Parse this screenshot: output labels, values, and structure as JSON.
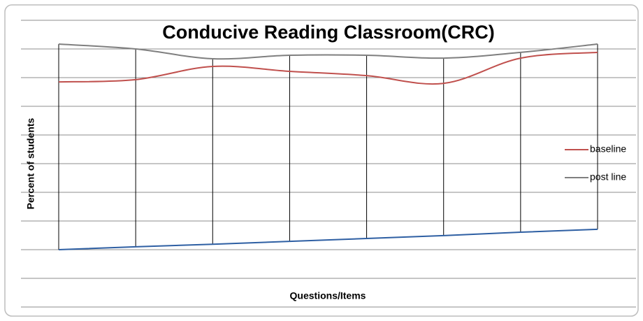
{
  "chart_data": {
    "type": "line",
    "title": "Conducive Reading Classroom(CRC)",
    "xlabel": "Questions/Items",
    "ylabel": "Percent of students",
    "categories": [
      null,
      null,
      null,
      null,
      null,
      null,
      null,
      null
    ],
    "series": [
      {
        "name": "baseline",
        "color": "#c0504d",
        "values": [
          58.5,
          59.3,
          63.9,
          62.2,
          60.7,
          58,
          66.8,
          68.8
        ]
      },
      {
        "name": "post line",
        "color": "#7f7f7f",
        "values": [
          71.7,
          70,
          66.6,
          67.8,
          67.8,
          66.8,
          68.8,
          71.7
        ]
      },
      {
        "color": "#2e5fa3",
        "values": [
          0,
          1,
          1.9,
          2.9,
          3.9,
          4.9,
          6.1,
          7.1
        ]
      }
    ],
    "ylim": [
      -20,
      80
    ],
    "yticks": [
      -20,
      -10,
      0,
      10,
      20,
      30,
      40,
      50,
      60,
      70,
      80
    ],
    "grid": true,
    "legend": "right"
  }
}
